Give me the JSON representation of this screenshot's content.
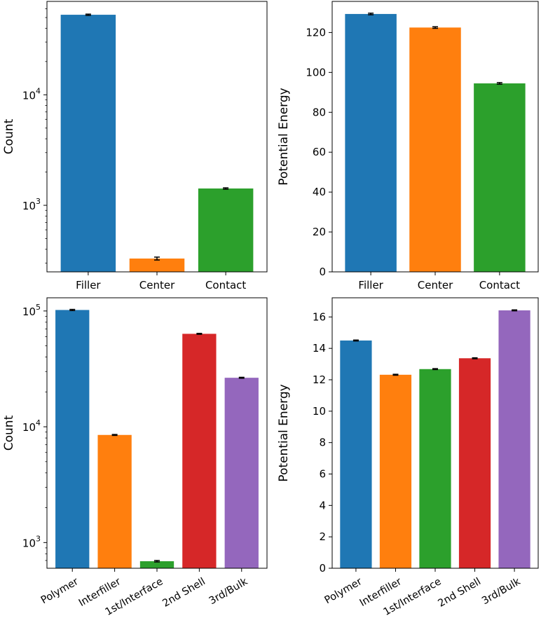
{
  "chart_data": [
    {
      "id": "top-left",
      "type": "bar",
      "yscale": "log",
      "ylabel": "Count",
      "categories": [
        "Filler",
        "Center",
        "Contact"
      ],
      "values": [
        53000,
        330,
        1420
      ],
      "errors": [
        700,
        10,
        20
      ],
      "colors": [
        "#1f77b4",
        "#ff7f0e",
        "#2ca02c"
      ],
      "ylim": [
        250,
        70000
      ],
      "yticks": [
        {
          "value": 10000,
          "base": "10",
          "exp": "4"
        },
        {
          "value": 1000,
          "base": "10",
          "exp": "3"
        }
      ],
      "tick_rotation": 0
    },
    {
      "id": "top-right",
      "type": "bar",
      "yscale": "linear",
      "ylabel": "Potential Energy",
      "categories": [
        "Filler",
        "Center",
        "Contact"
      ],
      "values": [
        129.3,
        122.5,
        94.5
      ],
      "errors": [
        0.4,
        0.4,
        0.4
      ],
      "colors": [
        "#1f77b4",
        "#ff7f0e",
        "#2ca02c"
      ],
      "ylim": [
        0,
        135.6
      ],
      "yticks": [
        {
          "value": 0,
          "label": "0"
        },
        {
          "value": 20,
          "label": "20"
        },
        {
          "value": 40,
          "label": "40"
        },
        {
          "value": 60,
          "label": "60"
        },
        {
          "value": 80,
          "label": "80"
        },
        {
          "value": 100,
          "label": "100"
        },
        {
          "value": 120,
          "label": "120"
        }
      ],
      "tick_rotation": 0
    },
    {
      "id": "bottom-left",
      "type": "bar",
      "yscale": "log",
      "ylabel": "Count",
      "categories": [
        "Polymer",
        "Interfiller",
        "1st/Interface",
        "2nd Shell",
        "3rd/Bulk"
      ],
      "values": [
        102000,
        8500,
        690,
        63500,
        26500
      ],
      "errors": [
        1200,
        80,
        10,
        600,
        250
      ],
      "colors": [
        "#1f77b4",
        "#ff7f0e",
        "#2ca02c",
        "#d62728",
        "#9467bd"
      ],
      "ylim": [
        600,
        130000
      ],
      "yticks": [
        {
          "value": 100000,
          "base": "10",
          "exp": "5"
        },
        {
          "value": 10000,
          "base": "10",
          "exp": "4"
        },
        {
          "value": 1000,
          "base": "10",
          "exp": "3"
        }
      ],
      "tick_rotation": -30
    },
    {
      "id": "bottom-right",
      "type": "bar",
      "yscale": "linear",
      "ylabel": "Potential Energy",
      "categories": [
        "Polymer",
        "Interfiller",
        "1st/Interface",
        "2nd Shell",
        "3rd/Bulk"
      ],
      "values": [
        14.5,
        12.32,
        12.68,
        13.37,
        16.42
      ],
      "errors": [
        0.03,
        0.03,
        0.03,
        0.03,
        0.03
      ],
      "colors": [
        "#1f77b4",
        "#ff7f0e",
        "#2ca02c",
        "#d62728",
        "#9467bd"
      ],
      "ylim": [
        0,
        17.22
      ],
      "yticks": [
        {
          "value": 0,
          "label": "0"
        },
        {
          "value": 2,
          "label": "2"
        },
        {
          "value": 4,
          "label": "4"
        },
        {
          "value": 6,
          "label": "6"
        },
        {
          "value": 8,
          "label": "8"
        },
        {
          "value": 10,
          "label": "10"
        },
        {
          "value": 12,
          "label": "12"
        },
        {
          "value": 14,
          "label": "14"
        },
        {
          "value": 16,
          "label": "16"
        }
      ],
      "tick_rotation": -30
    }
  ]
}
